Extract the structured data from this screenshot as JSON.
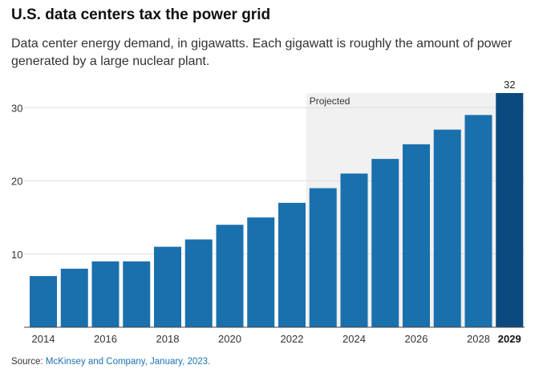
{
  "title": "U.S. data centers tax the power grid",
  "subtitle": "Data center energy demand, in gigawatts. Each gigawatt is roughly the amount of power generated by a large nuclear plant.",
  "source_label": "Source:",
  "source_text": "McKinsey and Company, January, 2023.",
  "colors": {
    "bar": "#1a70ad",
    "highlight": "#0a4a7e",
    "projected_bg": "#f1f1f1",
    "grid": "#dddddd"
  },
  "chart_data": {
    "type": "bar",
    "categories": [
      "2014",
      "2015",
      "2016",
      "2017",
      "2018",
      "2019",
      "2020",
      "2021",
      "2022",
      "2023",
      "2024",
      "2025",
      "2026",
      "2027",
      "2028",
      "2029"
    ],
    "values": [
      7,
      8,
      9,
      9,
      11,
      12,
      14,
      15,
      17,
      19,
      21,
      23,
      25,
      27,
      29,
      32
    ],
    "x_tick_labels": [
      "2014",
      "2016",
      "2018",
      "2020",
      "2022",
      "2024",
      "2026",
      "2028",
      "2029"
    ],
    "y_ticks": [
      10,
      20,
      30
    ],
    "ylim": [
      0,
      32
    ],
    "projected_label": "Projected",
    "projected_from": "2023",
    "highlight": {
      "category": "2029",
      "label": "32"
    },
    "grid": true
  }
}
